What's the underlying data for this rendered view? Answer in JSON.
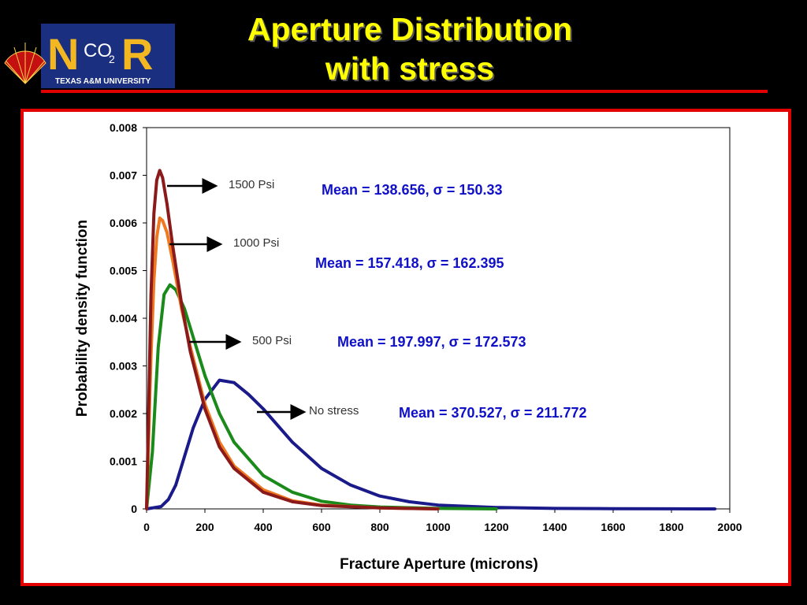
{
  "title_lines": [
    "Aperture Distribution",
    "with stress"
  ],
  "logo": {
    "text_left": "N",
    "text_right": "R",
    "text_co": "CO",
    "text_sub": "2",
    "text_university": "TEXAS A&M UNIVERSITY"
  },
  "colors": {
    "background": "#000000",
    "title": "#ffff00",
    "accent_red": "#e30000",
    "annotation": "#1010c8"
  },
  "chart_data": {
    "type": "line",
    "xlabel": "Fracture Aperture (microns)",
    "ylabel": "Probability density function",
    "xlim": [
      0,
      2000
    ],
    "ylim": [
      0,
      0.008
    ],
    "x_ticks": [
      "0",
      "200",
      "400",
      "600",
      "800",
      "1000",
      "1200",
      "1400",
      "1600",
      "1800",
      "2000"
    ],
    "y_ticks": [
      "0",
      "0.001",
      "0.002",
      "0.003",
      "0.004",
      "0.005",
      "0.006",
      "0.007",
      "0.008"
    ],
    "grid": false,
    "series": [
      {
        "name": "1500 Psi",
        "color": "#8b1a1a",
        "mean": 138.656,
        "sigma": 150.33,
        "peak_x": 45,
        "peak_y": 0.0071,
        "x": [
          0,
          15,
          25,
          35,
          45,
          55,
          70,
          90,
          120,
          150,
          200,
          250,
          300,
          400,
          500,
          600,
          800,
          1000
        ],
        "y": [
          0,
          0.0045,
          0.0062,
          0.0069,
          0.0071,
          0.00695,
          0.0064,
          0.0055,
          0.0043,
          0.0033,
          0.0021,
          0.0013,
          0.00085,
          0.00035,
          0.00015,
          7e-05,
          2e-05,
          0
        ]
      },
      {
        "name": "1000 Psi",
        "color": "#f07820",
        "mean": 157.418,
        "sigma": 162.395,
        "peak_x": 50,
        "peak_y": 0.0061,
        "x": [
          0,
          15,
          25,
          35,
          45,
          55,
          70,
          90,
          120,
          150,
          200,
          250,
          300,
          400,
          500,
          600,
          800,
          1000
        ],
        "y": [
          0,
          0.0032,
          0.0048,
          0.0057,
          0.0061,
          0.00605,
          0.0058,
          0.0052,
          0.0042,
          0.0034,
          0.0022,
          0.0014,
          0.0009,
          0.0004,
          0.00017,
          8e-05,
          2e-05,
          0
        ]
      },
      {
        "name": "500 Psi",
        "color": "#1a8a1a",
        "mean": 197.997,
        "sigma": 172.573,
        "peak_x": 80,
        "peak_y": 0.0047,
        "x": [
          0,
          20,
          40,
          60,
          80,
          100,
          130,
          160,
          200,
          250,
          300,
          400,
          500,
          600,
          700,
          800,
          1000,
          1200
        ],
        "y": [
          0,
          0.0012,
          0.0034,
          0.0045,
          0.0047,
          0.0046,
          0.0042,
          0.0036,
          0.0028,
          0.002,
          0.0014,
          0.0007,
          0.00035,
          0.00016,
          8e-05,
          4e-05,
          1e-05,
          0
        ]
      },
      {
        "name": "No stress",
        "color": "#1a1a8a",
        "mean": 370.527,
        "sigma": 211.772,
        "peak_x": 250,
        "peak_y": 0.0027,
        "x": [
          0,
          50,
          75,
          100,
          130,
          160,
          200,
          250,
          300,
          350,
          400,
          500,
          600,
          700,
          800,
          900,
          1000,
          1200,
          1400,
          1600,
          1800,
          1950
        ],
        "y": [
          0,
          5e-05,
          0.0002,
          0.0005,
          0.0011,
          0.0017,
          0.0023,
          0.0027,
          0.00265,
          0.0024,
          0.0021,
          0.0014,
          0.00085,
          0.0005,
          0.00027,
          0.00015,
          8e-05,
          3e-05,
          1e-05,
          5e-06,
          2e-06,
          0
        ]
      }
    ],
    "annotations": [
      {
        "series": "1500 Psi",
        "label": "1500 Psi",
        "stats": "Mean = 138.656, σ = 150.33"
      },
      {
        "series": "1000 Psi",
        "label": "1000 Psi",
        "stats": "Mean = 157.418, σ = 162.395"
      },
      {
        "series": "500 Psi",
        "label": "500 Psi",
        "stats": "Mean = 197.997, σ = 172.573"
      },
      {
        "series": "No stress",
        "label": "No stress",
        "stats": "Mean = 370.527, σ = 211.772"
      }
    ]
  }
}
